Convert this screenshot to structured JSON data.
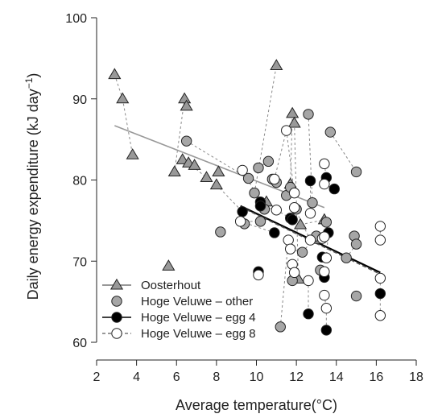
{
  "chart_data": {
    "type": "scatter",
    "xlabel": "Average temperature(°C)",
    "ylabel": "Daily energy expenditure (kJ day",
    "ylabel_superscript": "−1",
    "ylabel_suffix": ")",
    "xlim": [
      2,
      18
    ],
    "ylim": [
      60,
      100
    ],
    "xticks": [
      2,
      4,
      6,
      8,
      10,
      12,
      14,
      16,
      18
    ],
    "yticks": [
      60,
      70,
      80,
      90,
      100
    ],
    "legend_position": "bottom-left",
    "series": [
      {
        "name": "Oosterhout",
        "marker": "triangle",
        "fill": "#999999",
        "line": {
          "style": "solid",
          "color": "#999999",
          "x": [
            2.9,
            13.4
          ],
          "y": [
            86.7,
            76.6
          ]
        },
        "points": [
          [
            2.9,
            93
          ],
          [
            3.3,
            90
          ],
          [
            3.8,
            83.1
          ],
          [
            5.6,
            69.4
          ],
          [
            5.9,
            81
          ],
          [
            6.3,
            82.5
          ],
          [
            6.4,
            90
          ],
          [
            6.5,
            89.1
          ],
          [
            6.6,
            82.1
          ],
          [
            6.9,
            81.8
          ],
          [
            7.5,
            80.3
          ],
          [
            8,
            79.4
          ],
          [
            8.1,
            81
          ],
          [
            10.5,
            77.3
          ],
          [
            11,
            94.1
          ],
          [
            11.7,
            79.5
          ],
          [
            11.8,
            88.2
          ],
          [
            11.9,
            87
          ],
          [
            12.1,
            67.8
          ],
          [
            12.2,
            74.5
          ],
          [
            13,
            72.7
          ],
          [
            13.4,
            75.1
          ]
        ]
      },
      {
        "name": "Hoge Veluwe – other",
        "marker": "circle",
        "fill": "#a6a6a6",
        "points": [
          [
            6.5,
            84.8
          ],
          [
            8.2,
            73.6
          ],
          [
            9.4,
            74.6
          ],
          [
            9.6,
            80.2
          ],
          [
            9.9,
            78.4
          ],
          [
            10.1,
            81.5
          ],
          [
            10.2,
            74.9
          ],
          [
            10.4,
            76.4
          ],
          [
            10.6,
            82.3
          ],
          [
            10.8,
            80.1
          ],
          [
            11,
            79.7
          ],
          [
            11.2,
            61.9
          ],
          [
            11.5,
            78.1
          ],
          [
            11.7,
            79.1
          ],
          [
            11.8,
            67.6
          ],
          [
            12,
            76.4
          ],
          [
            12.3,
            71.1
          ],
          [
            12.6,
            88.1
          ],
          [
            12.8,
            77.2
          ],
          [
            13,
            73.1
          ],
          [
            13.2,
            68.9
          ],
          [
            13.5,
            74.8
          ],
          [
            13.7,
            85.9
          ],
          [
            14.5,
            70.4
          ],
          [
            14.9,
            73.1
          ],
          [
            15,
            72.1
          ],
          [
            15,
            65.7
          ],
          [
            15,
            81
          ]
        ]
      },
      {
        "name": "Hoge Veluwe – egg 4",
        "marker": "circle",
        "fill": "#000000",
        "line": {
          "style": "solid",
          "color": "#000000",
          "x": [
            9.2,
            16.2
          ],
          "y": [
            76.8,
            68.6
          ]
        },
        "points": [
          [
            9.3,
            76.1
          ],
          [
            10.1,
            68.7
          ],
          [
            10.2,
            77.3
          ],
          [
            10.2,
            76.8
          ],
          [
            10.9,
            73.5
          ],
          [
            11.7,
            75.3
          ],
          [
            11.8,
            75.1
          ],
          [
            12.6,
            63.5
          ],
          [
            12.7,
            79.9
          ],
          [
            13.3,
            70.5
          ],
          [
            13.4,
            68
          ],
          [
            13.5,
            61.5
          ],
          [
            13.5,
            80.3
          ],
          [
            13.6,
            73.5
          ],
          [
            13.9,
            78.9
          ],
          [
            16.2,
            66
          ]
        ]
      },
      {
        "name": "Hoge Veluwe – egg 8",
        "marker": "circle",
        "fill": "#ffffff",
        "line": {
          "style": "dashed",
          "color": "#555555",
          "x": [
            9.2,
            16.2
          ],
          "y": [
            76.7,
            68.4
          ]
        },
        "points": [
          [
            9.2,
            74.9
          ],
          [
            9.3,
            81.2
          ],
          [
            10.1,
            68.3
          ],
          [
            10.9,
            80.1
          ],
          [
            11,
            76.3
          ],
          [
            11.5,
            86.1
          ],
          [
            11.6,
            72.6
          ],
          [
            11.7,
            71.5
          ],
          [
            11.8,
            69.6
          ],
          [
            11.9,
            78.4
          ],
          [
            11.9,
            76.6
          ],
          [
            11.9,
            68.6
          ],
          [
            12.6,
            67.6
          ],
          [
            12.7,
            72.6
          ],
          [
            12.7,
            75.9
          ],
          [
            13.3,
            72.8
          ],
          [
            13.4,
            82
          ],
          [
            13.4,
            79.5
          ],
          [
            13.4,
            73
          ],
          [
            13.5,
            70.4
          ],
          [
            13.4,
            68.7
          ],
          [
            13.4,
            65.8
          ],
          [
            13.5,
            64.2
          ],
          [
            16.2,
            74.3
          ],
          [
            16.2,
            72.6
          ],
          [
            16.2,
            67.9
          ],
          [
            16.2,
            63.3
          ]
        ]
      }
    ],
    "connectors": [
      [
        [
          2.9,
          93
        ],
        [
          3.3,
          90
        ]
      ],
      [
        [
          3.3,
          90
        ],
        [
          3.8,
          83.1
        ]
      ],
      [
        [
          5.9,
          81
        ],
        [
          6.4,
          90
        ]
      ],
      [
        [
          6.4,
          90
        ],
        [
          6.5,
          89.1
        ]
      ],
      [
        [
          6.6,
          82.1
        ],
        [
          7.5,
          80.3
        ]
      ],
      [
        [
          8,
          79.4
        ],
        [
          9.3,
          76.1
        ]
      ],
      [
        [
          6.5,
          84.8
        ],
        [
          9.6,
          80.2
        ]
      ],
      [
        [
          9.9,
          78.4
        ],
        [
          11,
          94.1
        ]
      ],
      [
        [
          11.7,
          79.5
        ],
        [
          11.8,
          88.2
        ]
      ],
      [
        [
          11.9,
          87
        ],
        [
          12.1,
          67.8
        ]
      ],
      [
        [
          12.2,
          74.5
        ],
        [
          13.4,
          75.1
        ]
      ],
      [
        [
          12.6,
          88.1
        ],
        [
          12.8,
          77.2
        ]
      ],
      [
        [
          13.7,
          85.9
        ],
        [
          15,
          81
        ]
      ],
      [
        [
          14.5,
          70.4
        ],
        [
          15,
          72.1
        ]
      ],
      [
        [
          10.1,
          81.5
        ],
        [
          10.6,
          82.3
        ]
      ],
      [
        [
          10.9,
          80.1
        ],
        [
          11.5,
          86.1
        ]
      ],
      [
        [
          11.5,
          86.1
        ],
        [
          11.9,
          78.4
        ]
      ],
      [
        [
          9.3,
          81.2
        ],
        [
          10.2,
          77.3
        ]
      ],
      [
        [
          10.2,
          76.8
        ],
        [
          11,
          76.3
        ]
      ],
      [
        [
          11,
          76.3
        ],
        [
          11.7,
          75.3
        ]
      ],
      [
        [
          11.8,
          75.1
        ],
        [
          11.9,
          76.6
        ]
      ],
      [
        [
          11.9,
          76.6
        ],
        [
          12.7,
          72.6
        ]
      ],
      [
        [
          12.7,
          72.6
        ],
        [
          13.3,
          72.8
        ]
      ],
      [
        [
          12.7,
          79.9
        ],
        [
          12.7,
          75.9
        ]
      ],
      [
        [
          13.4,
          82
        ],
        [
          13.5,
          80.3
        ]
      ],
      [
        [
          13.4,
          79.5
        ],
        [
          13.9,
          78.9
        ]
      ],
      [
        [
          13.3,
          72.8
        ],
        [
          13.6,
          73.5
        ]
      ],
      [
        [
          13.6,
          73.5
        ],
        [
          13.5,
          70.4
        ]
      ],
      [
        [
          13.4,
          68.7
        ],
        [
          13.4,
          68
        ]
      ],
      [
        [
          13.4,
          65.8
        ],
        [
          13.5,
          64.2
        ]
      ],
      [
        [
          13.5,
          64.2
        ],
        [
          13.5,
          61.5
        ]
      ],
      [
        [
          12.6,
          67.6
        ],
        [
          12.6,
          63.5
        ]
      ],
      [
        [
          11.8,
          69.6
        ],
        [
          12.1,
          67.8
        ]
      ],
      [
        [
          10.1,
          68.7
        ],
        [
          10.1,
          68.3
        ]
      ],
      [
        [
          9.2,
          74.9
        ],
        [
          10.2,
          74.9
        ]
      ],
      [
        [
          9.2,
          74.9
        ],
        [
          10.9,
          73.5
        ]
      ],
      [
        [
          11.7,
          71.5
        ],
        [
          12.3,
          71.1
        ]
      ],
      [
        [
          16.2,
          74.3
        ],
        [
          16.2,
          72.6
        ]
      ],
      [
        [
          16.2,
          67.9
        ],
        [
          16.2,
          66
        ]
      ],
      [
        [
          16.2,
          66
        ],
        [
          16.2,
          63.3
        ]
      ],
      [
        [
          11.2,
          61.9
        ],
        [
          11.6,
          72.6
        ]
      ],
      [
        [
          12.3,
          71.1
        ],
        [
          13,
          73.1
        ]
      ]
    ]
  }
}
